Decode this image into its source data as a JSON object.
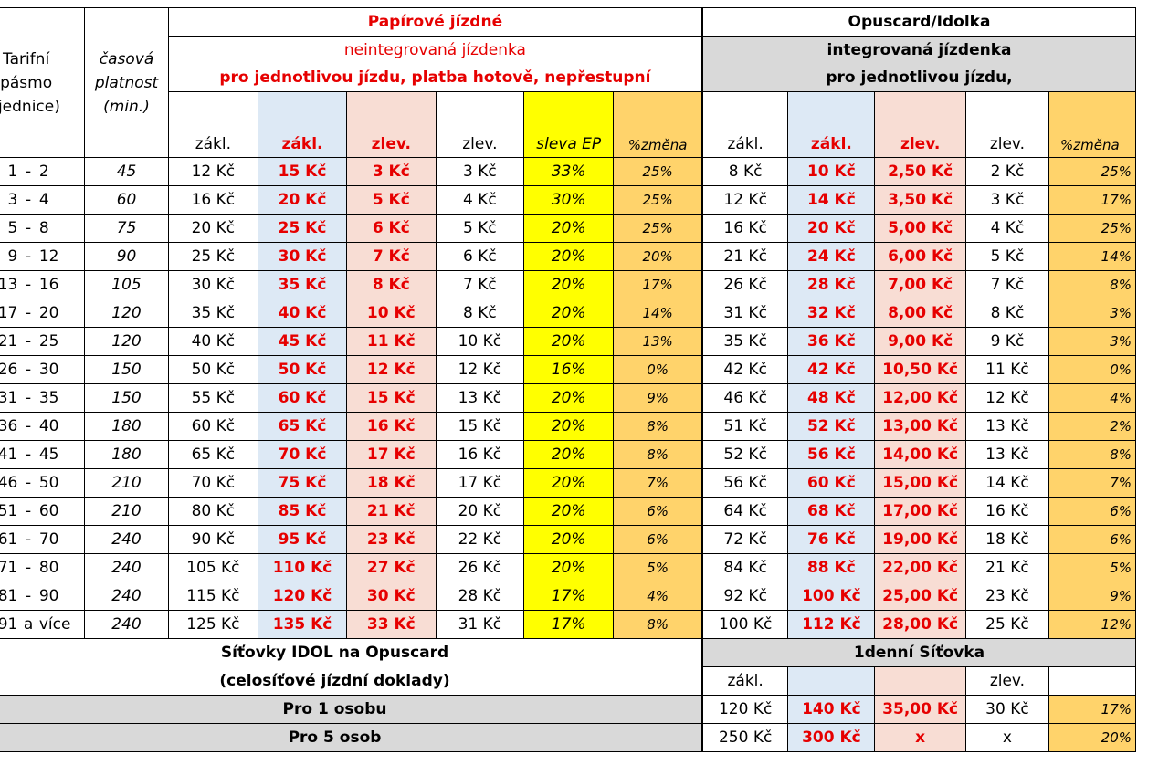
{
  "header": {
    "zone_label": "Tarifní pásmo (jednice)",
    "zone_label_lines": [
      "Tarifní",
      "pásmo",
      "(jednice)"
    ],
    "validity_label_lines": [
      "časová",
      "platnost",
      "(min.)"
    ],
    "paper_title": "Papírové jízdné",
    "paper_sub1": "neintegrovaná jízdenka",
    "paper_sub2": "pro jednotlivou jízdu, platba hotově, nepřestupní",
    "opus_title": "Opuscard/Idolka",
    "opus_sub1": "integrovaná jízdenka",
    "opus_sub2": "pro jednotlivou jízdu,",
    "paper_cols": [
      "zákl.",
      "zákl.",
      "zlev.",
      "zlev.",
      "sleva EP",
      "%změna"
    ],
    "opus_cols": [
      "zákl.",
      "zákl.",
      "zlev.",
      "zlev.",
      "%změna"
    ]
  },
  "rows": [
    {
      "from": "1",
      "dash": "-",
      "to": "2",
      "min": "45",
      "p_zakl": "12 Kč",
      "p_zakl_new": "15 Kč",
      "p_zlev_new": "3 Kč",
      "p_zlev": "3 Kč",
      "ep": "33%",
      "pchg": "25%",
      "o_zakl": "8 Kč",
      "o_zakl_new": "10 Kč",
      "o_zlev_new": "2,50 Kč",
      "o_zlev": "2 Kč",
      "ochg": "25%"
    },
    {
      "from": "3",
      "dash": "-",
      "to": "4",
      "min": "60",
      "p_zakl": "16 Kč",
      "p_zakl_new": "20 Kč",
      "p_zlev_new": "5 Kč",
      "p_zlev": "4 Kč",
      "ep": "30%",
      "pchg": "25%",
      "o_zakl": "12 Kč",
      "o_zakl_new": "14 Kč",
      "o_zlev_new": "3,50 Kč",
      "o_zlev": "3 Kč",
      "ochg": "17%"
    },
    {
      "from": "5",
      "dash": "-",
      "to": "8",
      "min": "75",
      "p_zakl": "20 Kč",
      "p_zakl_new": "25 Kč",
      "p_zlev_new": "6 Kč",
      "p_zlev": "5 Kč",
      "ep": "20%",
      "pchg": "25%",
      "o_zakl": "16 Kč",
      "o_zakl_new": "20 Kč",
      "o_zlev_new": "5,00 Kč",
      "o_zlev": "4 Kč",
      "ochg": "25%"
    },
    {
      "from": "9",
      "dash": "-",
      "to": "12",
      "min": "90",
      "p_zakl": "25 Kč",
      "p_zakl_new": "30 Kč",
      "p_zlev_new": "7 Kč",
      "p_zlev": "6 Kč",
      "ep": "20%",
      "pchg": "20%",
      "o_zakl": "21 Kč",
      "o_zakl_new": "24 Kč",
      "o_zlev_new": "6,00 Kč",
      "o_zlev": "5 Kč",
      "ochg": "14%"
    },
    {
      "from": "13",
      "dash": "-",
      "to": "16",
      "min": "105",
      "p_zakl": "30 Kč",
      "p_zakl_new": "35 Kč",
      "p_zlev_new": "8 Kč",
      "p_zlev": "7 Kč",
      "ep": "20%",
      "pchg": "17%",
      "o_zakl": "26 Kč",
      "o_zakl_new": "28 Kč",
      "o_zlev_new": "7,00 Kč",
      "o_zlev": "7 Kč",
      "ochg": "8%"
    },
    {
      "from": "17",
      "dash": "-",
      "to": "20",
      "min": "120",
      "p_zakl": "35 Kč",
      "p_zakl_new": "40 Kč",
      "p_zlev_new": "10 Kč",
      "p_zlev": "8 Kč",
      "ep": "20%",
      "pchg": "14%",
      "o_zakl": "31 Kč",
      "o_zakl_new": "32 Kč",
      "o_zlev_new": "8,00 Kč",
      "o_zlev": "8 Kč",
      "ochg": "3%"
    },
    {
      "from": "21",
      "dash": "-",
      "to": "25",
      "min": "120",
      "p_zakl": "40 Kč",
      "p_zakl_new": "45 Kč",
      "p_zlev_new": "11 Kč",
      "p_zlev": "10 Kč",
      "ep": "20%",
      "pchg": "13%",
      "o_zakl": "35 Kč",
      "o_zakl_new": "36 Kč",
      "o_zlev_new": "9,00 Kč",
      "o_zlev": "9 Kč",
      "ochg": "3%"
    },
    {
      "from": "26",
      "dash": "-",
      "to": "30",
      "min": "150",
      "p_zakl": "50 Kč",
      "p_zakl_new": "50 Kč",
      "p_zlev_new": "12 Kč",
      "p_zlev": "12 Kč",
      "ep": "16%",
      "pchg": "0%",
      "o_zakl": "42 Kč",
      "o_zakl_new": "42 Kč",
      "o_zlev_new": "10,50 Kč",
      "o_zlev": "11 Kč",
      "ochg": "0%"
    },
    {
      "from": "31",
      "dash": "-",
      "to": "35",
      "min": "150",
      "p_zakl": "55 Kč",
      "p_zakl_new": "60 Kč",
      "p_zlev_new": "15 Kč",
      "p_zlev": "13 Kč",
      "ep": "20%",
      "pchg": "9%",
      "o_zakl": "46 Kč",
      "o_zakl_new": "48 Kč",
      "o_zlev_new": "12,00 Kč",
      "o_zlev": "12 Kč",
      "ochg": "4%"
    },
    {
      "from": "36",
      "dash": "-",
      "to": "40",
      "min": "180",
      "p_zakl": "60 Kč",
      "p_zakl_new": "65 Kč",
      "p_zlev_new": "16 Kč",
      "p_zlev": "15 Kč",
      "ep": "20%",
      "pchg": "8%",
      "o_zakl": "51 Kč",
      "o_zakl_new": "52 Kč",
      "o_zlev_new": "13,00 Kč",
      "o_zlev": "13 Kč",
      "ochg": "2%"
    },
    {
      "from": "41",
      "dash": "-",
      "to": "45",
      "min": "180",
      "p_zakl": "65 Kč",
      "p_zakl_new": "70 Kč",
      "p_zlev_new": "17 Kč",
      "p_zlev": "16 Kč",
      "ep": "20%",
      "pchg": "8%",
      "o_zakl": "52 Kč",
      "o_zakl_new": "56 Kč",
      "o_zlev_new": "14,00 Kč",
      "o_zlev": "13 Kč",
      "ochg": "8%"
    },
    {
      "from": "46",
      "dash": "-",
      "to": "50",
      "min": "210",
      "p_zakl": "70 Kč",
      "p_zakl_new": "75 Kč",
      "p_zlev_new": "18 Kč",
      "p_zlev": "17 Kč",
      "ep": "20%",
      "pchg": "7%",
      "o_zakl": "56 Kč",
      "o_zakl_new": "60 Kč",
      "o_zlev_new": "15,00 Kč",
      "o_zlev": "14 Kč",
      "ochg": "7%"
    },
    {
      "from": "51",
      "dash": "-",
      "to": "60",
      "min": "210",
      "p_zakl": "80 Kč",
      "p_zakl_new": "85 Kč",
      "p_zlev_new": "21 Kč",
      "p_zlev": "20 Kč",
      "ep": "20%",
      "pchg": "6%",
      "o_zakl": "64 Kč",
      "o_zakl_new": "68 Kč",
      "o_zlev_new": "17,00 Kč",
      "o_zlev": "16 Kč",
      "ochg": "6%"
    },
    {
      "from": "61",
      "dash": "-",
      "to": "70",
      "min": "240",
      "p_zakl": "90 Kč",
      "p_zakl_new": "95 Kč",
      "p_zlev_new": "23 Kč",
      "p_zlev": "22 Kč",
      "ep": "20%",
      "pchg": "6%",
      "o_zakl": "72 Kč",
      "o_zakl_new": "76 Kč",
      "o_zlev_new": "19,00 Kč",
      "o_zlev": "18 Kč",
      "ochg": "6%"
    },
    {
      "from": "71",
      "dash": "-",
      "to": "80",
      "min": "240",
      "p_zakl": "105 Kč",
      "p_zakl_new": "110 Kč",
      "p_zlev_new": "27 Kč",
      "p_zlev": "26 Kč",
      "ep": "20%",
      "pchg": "5%",
      "o_zakl": "84 Kč",
      "o_zakl_new": "88 Kč",
      "o_zlev_new": "22,00 Kč",
      "o_zlev": "21 Kč",
      "ochg": "5%"
    },
    {
      "from": "81",
      "dash": "-",
      "to": "90",
      "min": "240",
      "p_zakl": "115 Kč",
      "p_zakl_new": "120 Kč",
      "p_zlev_new": "30 Kč",
      "p_zlev": "28 Kč",
      "ep": "17%",
      "pchg": "4%",
      "o_zakl": "92 Kč",
      "o_zakl_new": "100 Kč",
      "o_zlev_new": "25,00 Kč",
      "o_zlev": "23 Kč",
      "ochg": "9%"
    },
    {
      "from": "91",
      "dash": "a",
      "to": "více",
      "min": "240",
      "p_zakl": "125 Kč",
      "p_zakl_new": "135 Kč",
      "p_zlev_new": "33 Kč",
      "p_zlev": "31 Kč",
      "ep": "17%",
      "pchg": "8%",
      "o_zakl": "100 Kč",
      "o_zakl_new": "112 Kč",
      "o_zlev_new": "28,00 Kč",
      "o_zlev": "25 Kč",
      "ochg": "12%"
    }
  ],
  "network": {
    "title1": "Síťovky IDOL na Opuscard",
    "title2": "(celosíťové jízdní doklady)",
    "day_title": "1denní Síťovka",
    "day_cols": [
      "zákl.",
      "",
      "",
      "zlev.",
      ""
    ],
    "rows": [
      {
        "label": "Pro 1 osobu",
        "zakl": "120 Kč",
        "zakl_new": "140 Kč",
        "zlev_new": "35,00 Kč",
        "zlev": "30 Kč",
        "chg": "17%"
      },
      {
        "label": "Pro 5 osob",
        "zakl": "250 Kč",
        "zakl_new": "300 Kč",
        "zlev_new": "x",
        "zlev": "x",
        "chg": "20%"
      }
    ]
  }
}
